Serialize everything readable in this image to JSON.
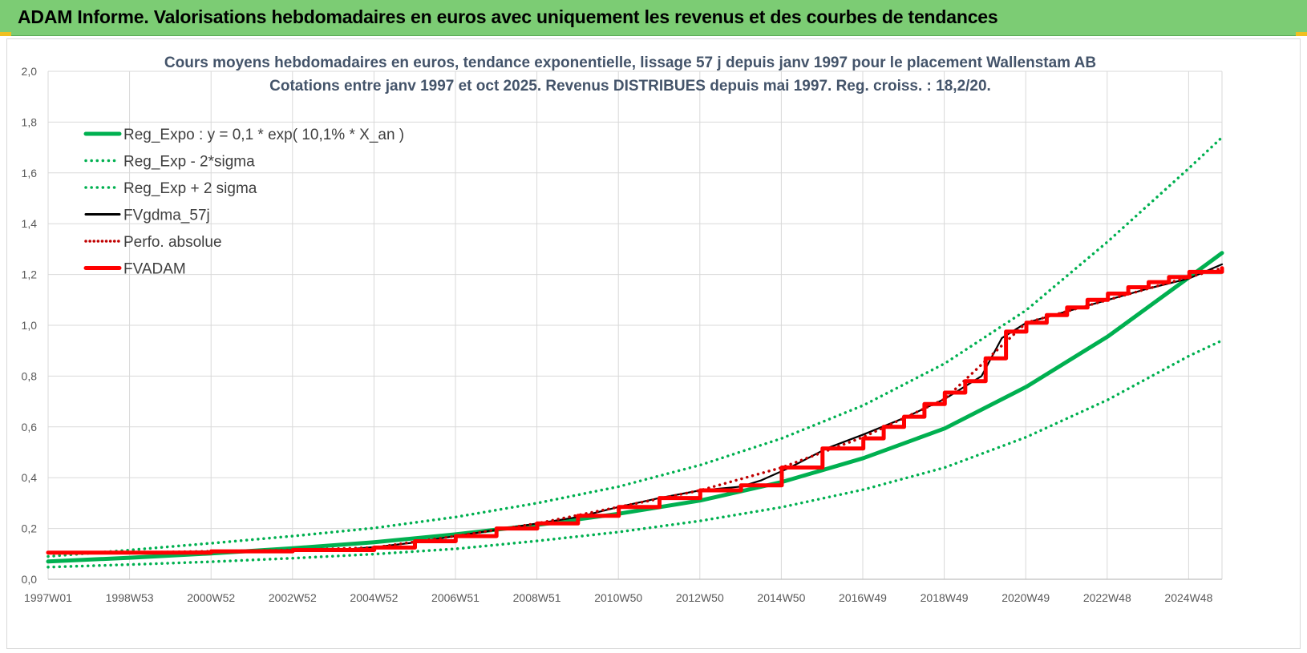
{
  "header": {
    "title": "ADAM Informe. Valorisations hebdomadaires en euros avec uniquement les revenus et des courbes de tendances"
  },
  "colors": {
    "header_bg": "#7ccc74",
    "reg_expo": "#00b050",
    "reg_band": "#00b050",
    "fvgdma": "#000000",
    "perfo": "#c00000",
    "fvadam": "#ff0000",
    "gridline": "#d9d9d9"
  },
  "chart_data": {
    "type": "line",
    "title": [
      "Cours moyens hebdomadaires en euros, tendance exponentielle, lissage 57 j depuis janv 1997  pour le placement Wallenstam AB",
      "Cotations entre janv 1997 et oct 2025. Revenus DISTRIBUES depuis mai 1997. Reg. croiss. : 18,2/20."
    ],
    "xlabel": "",
    "ylabel": "",
    "ylim": [
      0,
      2.0
    ],
    "xlim": [
      1997.0,
      2025.8
    ],
    "y_ticks": [
      "0,0",
      "0,2",
      "0,4",
      "0,6",
      "0,8",
      "1,0",
      "1,2",
      "1,4",
      "1,6",
      "1,8",
      "2,0"
    ],
    "x_ticks": [
      "1997W01",
      "1998W53",
      "2000W52",
      "2002W52",
      "2004W52",
      "2006W51",
      "2008W51",
      "2010W50",
      "2012W50",
      "2014W50",
      "2016W49",
      "2018W49",
      "2020W49",
      "2022W48",
      "2024W48"
    ],
    "grid": true,
    "legend_position": "top-left",
    "series": [
      {
        "name": "Reg_Expo : y = 0,1 * exp( 10,1% *  X_an )",
        "style": "solid-thick",
        "color": "#00b050",
        "x": [
          1997.0,
          1999.0,
          2001.0,
          2003.0,
          2005.0,
          2007.0,
          2009.0,
          2011.0,
          2013.0,
          2015.0,
          2017.0,
          2019.0,
          2021.0,
          2023.0,
          2025.0,
          2025.8
        ],
        "y": [
          0.07,
          0.085,
          0.102,
          0.122,
          0.146,
          0.177,
          0.214,
          0.258,
          0.31,
          0.383,
          0.477,
          0.594,
          0.758,
          0.956,
          1.19,
          1.285
        ]
      },
      {
        "name": "Reg_Exp - 2*sigma",
        "style": "dotted",
        "color": "#00b050",
        "x": [
          1997.0,
          1999.0,
          2001.0,
          2003.0,
          2005.0,
          2007.0,
          2009.0,
          2011.0,
          2013.0,
          2015.0,
          2017.0,
          2019.0,
          2021.0,
          2023.0,
          2025.0,
          2025.8
        ],
        "y": [
          0.048,
          0.058,
          0.069,
          0.083,
          0.099,
          0.12,
          0.151,
          0.186,
          0.23,
          0.284,
          0.353,
          0.44,
          0.56,
          0.707,
          0.88,
          0.94
        ]
      },
      {
        "name": "Reg_Exp + 2 sigma",
        "style": "dotted",
        "color": "#00b050",
        "x": [
          1997.0,
          1999.0,
          2001.0,
          2003.0,
          2005.0,
          2007.0,
          2009.0,
          2011.0,
          2013.0,
          2015.0,
          2017.0,
          2019.0,
          2021.0,
          2023.0,
          2025.0,
          2025.8
        ],
        "y": [
          0.09,
          0.115,
          0.142,
          0.17,
          0.202,
          0.245,
          0.3,
          0.365,
          0.45,
          0.555,
          0.685,
          0.85,
          1.06,
          1.33,
          1.62,
          1.74
        ]
      },
      {
        "name": "FVgdma_57j",
        "style": "solid",
        "color": "#000000",
        "x": [
          1997.0,
          1999.0,
          2001.0,
          2003.0,
          2004.5,
          2005.2,
          2006.0,
          2007.0,
          2008.0,
          2009.0,
          2010.0,
          2011.0,
          2012.0,
          2013.0,
          2014.0,
          2014.5,
          2015.2,
          2016.1,
          2017.0,
          2018.0,
          2019.0,
          2019.9,
          2020.4,
          2021.0,
          2022.0,
          2023.0,
          2024.0,
          2025.0,
          2025.8
        ],
        "y": [
          0.105,
          0.105,
          0.11,
          0.115,
          0.12,
          0.13,
          0.145,
          0.17,
          0.195,
          0.22,
          0.245,
          0.285,
          0.32,
          0.35,
          0.365,
          0.39,
          0.44,
          0.515,
          0.57,
          0.635,
          0.71,
          0.8,
          0.95,
          1.01,
          1.055,
          1.1,
          1.145,
          1.185,
          1.24
        ]
      },
      {
        "name": "Perfo. absolue",
        "style": "dotted",
        "color": "#c00000",
        "x": [
          1997.0,
          1999.0,
          2001.0,
          2003.0,
          2005.0,
          2007.0,
          2009.0,
          2011.0,
          2013.0,
          2015.0,
          2017.0,
          2019.0,
          2021.0,
          2023.0,
          2025.0,
          2025.8
        ],
        "y": [
          0.105,
          0.105,
          0.11,
          0.115,
          0.125,
          0.17,
          0.22,
          0.285,
          0.35,
          0.44,
          0.56,
          0.71,
          1.01,
          1.1,
          1.19,
          1.225
        ]
      },
      {
        "name": "FVADAM",
        "style": "step-thick",
        "color": "#ff0000",
        "x": [
          1997.0,
          1998.0,
          1999.0,
          2000.0,
          2001.0,
          2002.0,
          2003.0,
          2004.0,
          2005.0,
          2006.0,
          2007.0,
          2008.0,
          2009.0,
          2010.0,
          2011.0,
          2012.0,
          2013.0,
          2014.0,
          2015.0,
          2016.0,
          2017.0,
          2017.5,
          2018.0,
          2018.5,
          2019.0,
          2019.5,
          2020.0,
          2020.5,
          2021.0,
          2021.5,
          2022.0,
          2022.5,
          2023.0,
          2023.5,
          2024.0,
          2024.5,
          2025.0,
          2025.8
        ],
        "y": [
          0.105,
          0.105,
          0.105,
          0.105,
          0.11,
          0.11,
          0.115,
          0.115,
          0.125,
          0.15,
          0.17,
          0.2,
          0.22,
          0.25,
          0.285,
          0.32,
          0.35,
          0.37,
          0.44,
          0.515,
          0.555,
          0.6,
          0.64,
          0.69,
          0.735,
          0.78,
          0.87,
          0.975,
          1.01,
          1.04,
          1.07,
          1.1,
          1.125,
          1.15,
          1.17,
          1.19,
          1.21,
          1.225
        ]
      }
    ]
  }
}
